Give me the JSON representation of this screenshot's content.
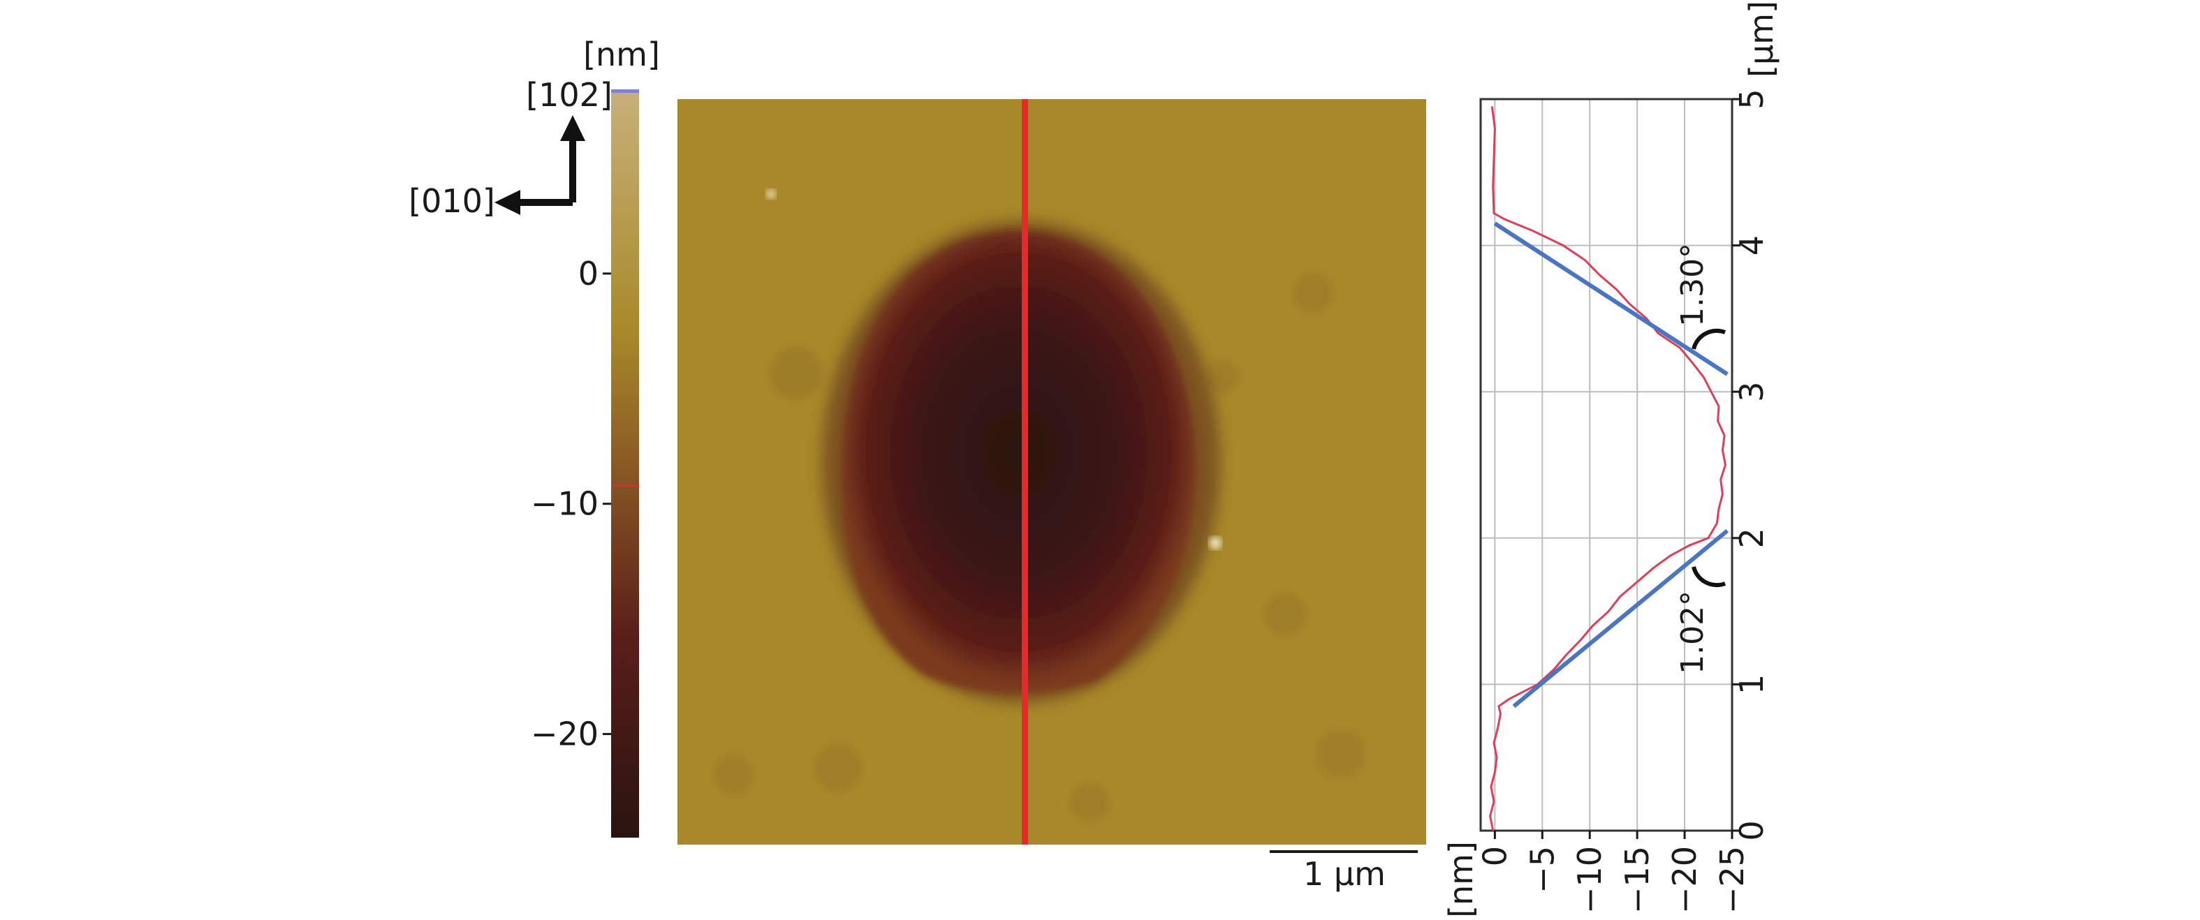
{
  "chart_data": [
    {
      "type": "heatmap",
      "description_visible": "AFM topography height image with color scale",
      "colorbar": {
        "unit": "[nm]",
        "range": [
          -24.5,
          8
        ],
        "ticks": [
          0,
          -10,
          -20
        ],
        "tick_labels": [
          "0",
          "−10",
          "−20"
        ],
        "colors": [
          "#2a1410",
          "#5a1e1a",
          "#8a5a24",
          "#a88a2a",
          "#c7b07a"
        ]
      },
      "crystal_directions": {
        "vertical": "[102]",
        "horizontal": "[010]"
      },
      "scale_bar": {
        "label": "1 µm",
        "length_um": 1
      },
      "image_extent_um": [
        5,
        5
      ],
      "feature": {
        "type": "elliptical depression (etch pit)",
        "min_height_nm": -24,
        "y_range_um": [
          1.0,
          4.2
        ]
      },
      "line_profile_color": "#e8292a"
    },
    {
      "type": "line",
      "orientation": "rotated",
      "xlabel": "[nm]",
      "ylabel": "[µm]",
      "x_ticks": [
        0,
        -5,
        -10,
        -15,
        -20,
        -25
      ],
      "x_tick_labels": [
        "0",
        "−5",
        "−10",
        "−15",
        "−20",
        "−25"
      ],
      "y_ticks": [
        0,
        1,
        2,
        3,
        4,
        5
      ],
      "y_tick_labels": [
        "0",
        "1",
        "2",
        "3",
        "4",
        "5"
      ],
      "xlim": [
        1.5,
        -25
      ],
      "ylim": [
        0,
        5
      ],
      "grid": true,
      "series": [
        {
          "color": "#d9405a",
          "points": [
            [
              0.2,
              0.0
            ],
            [
              0.5,
              0.1
            ],
            [
              0.1,
              0.2
            ],
            [
              0.4,
              0.3
            ],
            [
              0.0,
              0.4
            ],
            [
              -0.2,
              0.5
            ],
            [
              0.1,
              0.6
            ],
            [
              -0.3,
              0.7
            ],
            [
              -0.6,
              0.8
            ],
            [
              -0.4,
              0.85
            ],
            [
              -1.5,
              0.9
            ],
            [
              -3.0,
              0.95
            ],
            [
              -4.5,
              1.0
            ],
            [
              -6.2,
              1.1
            ],
            [
              -7.5,
              1.2
            ],
            [
              -9.0,
              1.3
            ],
            [
              -10.3,
              1.4
            ],
            [
              -12.0,
              1.5
            ],
            [
              -13.2,
              1.6
            ],
            [
              -15.0,
              1.7
            ],
            [
              -16.8,
              1.8
            ],
            [
              -18.5,
              1.88
            ],
            [
              -20.5,
              1.95
            ],
            [
              -22.5,
              2.0
            ],
            [
              -23.4,
              2.1
            ],
            [
              -23.6,
              2.2
            ],
            [
              -24.0,
              2.3
            ],
            [
              -23.8,
              2.4
            ],
            [
              -24.3,
              2.5
            ],
            [
              -24.0,
              2.6
            ],
            [
              -24.2,
              2.7
            ],
            [
              -23.5,
              2.8
            ],
            [
              -23.6,
              2.9
            ],
            [
              -22.8,
              3.0
            ],
            [
              -22.0,
              3.1
            ],
            [
              -20.8,
              3.2
            ],
            [
              -19.5,
              3.3
            ],
            [
              -17.2,
              3.4
            ],
            [
              -16.0,
              3.5
            ],
            [
              -14.2,
              3.6
            ],
            [
              -12.8,
              3.7
            ],
            [
              -11.0,
              3.8
            ],
            [
              -9.5,
              3.9
            ],
            [
              -7.2,
              4.0
            ],
            [
              -4.0,
              4.1
            ],
            [
              -1.0,
              4.18
            ],
            [
              0.1,
              4.22
            ],
            [
              0.2,
              4.4
            ],
            [
              0.1,
              4.6
            ],
            [
              0.0,
              4.8
            ],
            [
              0.3,
              4.95
            ]
          ]
        }
      ],
      "fit_lines": [
        {
          "color": "#4a74c4",
          "from": [
            -2.0,
            0.85
          ],
          "to": [
            -24.5,
            2.05
          ]
        },
        {
          "color": "#4a74c4",
          "from": [
            0.0,
            4.15
          ],
          "to": [
            -24.5,
            3.12
          ]
        }
      ],
      "annotations": [
        {
          "text": "1.30°",
          "at": [
            -20.5,
            3.6
          ]
        },
        {
          "text": "1.02°",
          "at": [
            -20.5,
            1.5
          ]
        }
      ]
    }
  ]
}
